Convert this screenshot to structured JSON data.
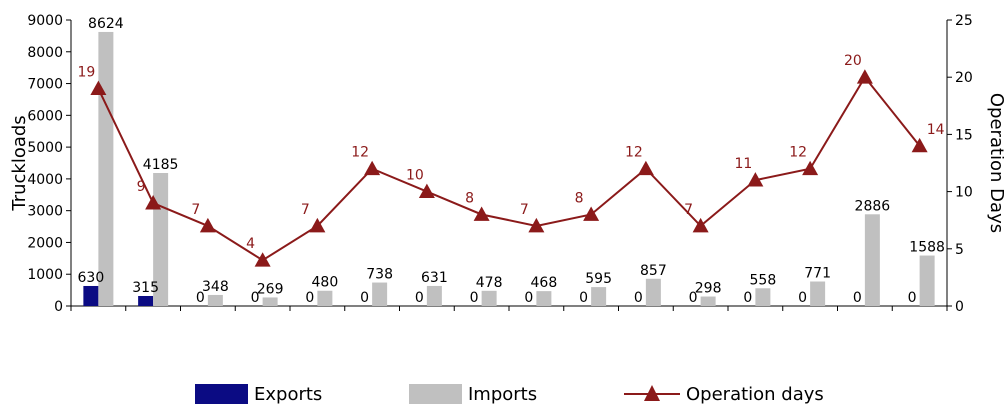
{
  "chart_data": {
    "type": "bar",
    "categories": [
      "",
      "",
      "",
      "",
      "",
      "",
      "",
      "",
      "",
      "",
      "",
      "",
      "",
      "",
      "",
      ""
    ],
    "series": [
      {
        "name": "Exports",
        "type": "bar",
        "axis": "left",
        "color": "#0b0b83",
        "values": [
          630,
          315,
          0,
          0,
          0,
          0,
          0,
          0,
          0,
          0,
          0,
          0,
          0,
          0,
          0,
          0
        ],
        "labels": [
          "630",
          "315",
          "0",
          "0",
          "0",
          "0",
          "0",
          "0",
          "0",
          "0",
          "0",
          "0",
          "0",
          "0",
          "0",
          "0"
        ]
      },
      {
        "name": "Imports",
        "type": "bar",
        "axis": "left",
        "color": "#c0c0c0",
        "values": [
          8624,
          4185,
          348,
          269,
          480,
          738,
          631,
          478,
          468,
          595,
          857,
          298,
          558,
          771,
          2886,
          1588
        ],
        "labels": [
          "8624",
          "4185",
          "348",
          "269",
          "480",
          "738",
          "631",
          "478",
          "468",
          "595",
          "857",
          "298",
          "558",
          "771",
          "2886",
          "1588"
        ]
      },
      {
        "name": "Operation days",
        "type": "line",
        "axis": "right",
        "color": "#8b1a1a",
        "marker": "triangle",
        "values": [
          19,
          9,
          7,
          4,
          7,
          12,
          10,
          8,
          7,
          8,
          12,
          7,
          11,
          12,
          20,
          14
        ],
        "labels": [
          "19",
          "9",
          "7",
          "4",
          "7",
          "12",
          "10",
          "8",
          "7",
          "8",
          "12",
          "7",
          "11",
          "12",
          "20",
          "14"
        ]
      }
    ],
    "ylabel": "Truckloads",
    "y2label": "Operation Days",
    "ylim": [
      0,
      9000
    ],
    "yticks": [
      0,
      1000,
      2000,
      3000,
      4000,
      5000,
      6000,
      7000,
      8000,
      9000
    ],
    "y2lim": [
      0,
      25
    ],
    "y2ticks": [
      0,
      5,
      10,
      15,
      20,
      25
    ],
    "legend": {
      "position": "bottom",
      "items": [
        "Exports",
        "Imports",
        "Operation days"
      ]
    },
    "grid": false
  }
}
